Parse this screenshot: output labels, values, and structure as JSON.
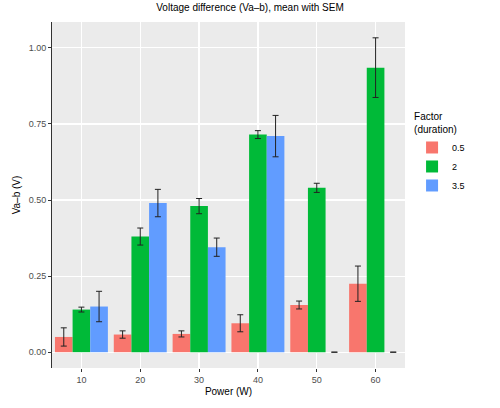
{
  "chart_data": {
    "type": "bar",
    "title": "Voltage difference (Va–b), mean with SEM",
    "x_label": "Power (W)",
    "y_label": "Va–b (V)",
    "legend_title": "Factor\n(duration)",
    "categories": [
      "10",
      "20",
      "30",
      "40",
      "50",
      "60"
    ],
    "series": [
      {
        "name": "0.5",
        "color": "#F8766D",
        "values": [
          0.05,
          0.058,
          0.06,
          0.095,
          0.155,
          0.225
        ],
        "errors": [
          0.03,
          0.012,
          0.01,
          0.028,
          0.013,
          0.058
        ]
      },
      {
        "name": "2",
        "color": "#00BA38",
        "values": [
          0.14,
          0.38,
          0.48,
          0.715,
          0.54,
          0.935
        ],
        "errors": [
          0.008,
          0.028,
          0.025,
          0.013,
          0.015,
          0.098
        ]
      },
      {
        "name": "3.5",
        "color": "#619CFF",
        "values": [
          0.15,
          0.49,
          0.345,
          0.71,
          0,
          0
        ],
        "errors": [
          0.05,
          0.045,
          0.03,
          0.068,
          0,
          0
        ]
      }
    ],
    "ylim": [
      -0.052,
      1.085
    ],
    "yticks": [
      {
        "value": 0,
        "label": "0.00"
      },
      {
        "value": 0.25,
        "label": "0.25"
      },
      {
        "value": 0.5,
        "label": "0.50"
      },
      {
        "value": 0.75,
        "label": "0.75"
      },
      {
        "value": 1,
        "label": "1.00"
      }
    ],
    "grid": true,
    "legend": "right"
  }
}
